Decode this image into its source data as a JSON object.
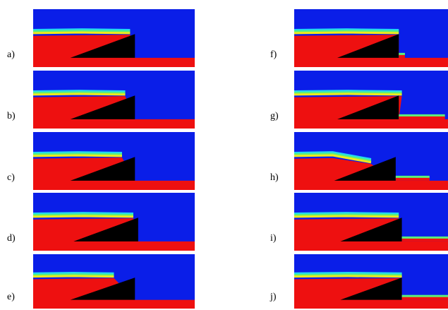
{
  "panels": [
    {
      "label": "a)"
    },
    {
      "label": "b)"
    },
    {
      "label": "c)"
    },
    {
      "label": "d)"
    },
    {
      "label": "e)"
    },
    {
      "label": "f)"
    },
    {
      "label": "g)"
    },
    {
      "label": "h)"
    },
    {
      "label": "i)"
    },
    {
      "label": "j)"
    }
  ]
}
